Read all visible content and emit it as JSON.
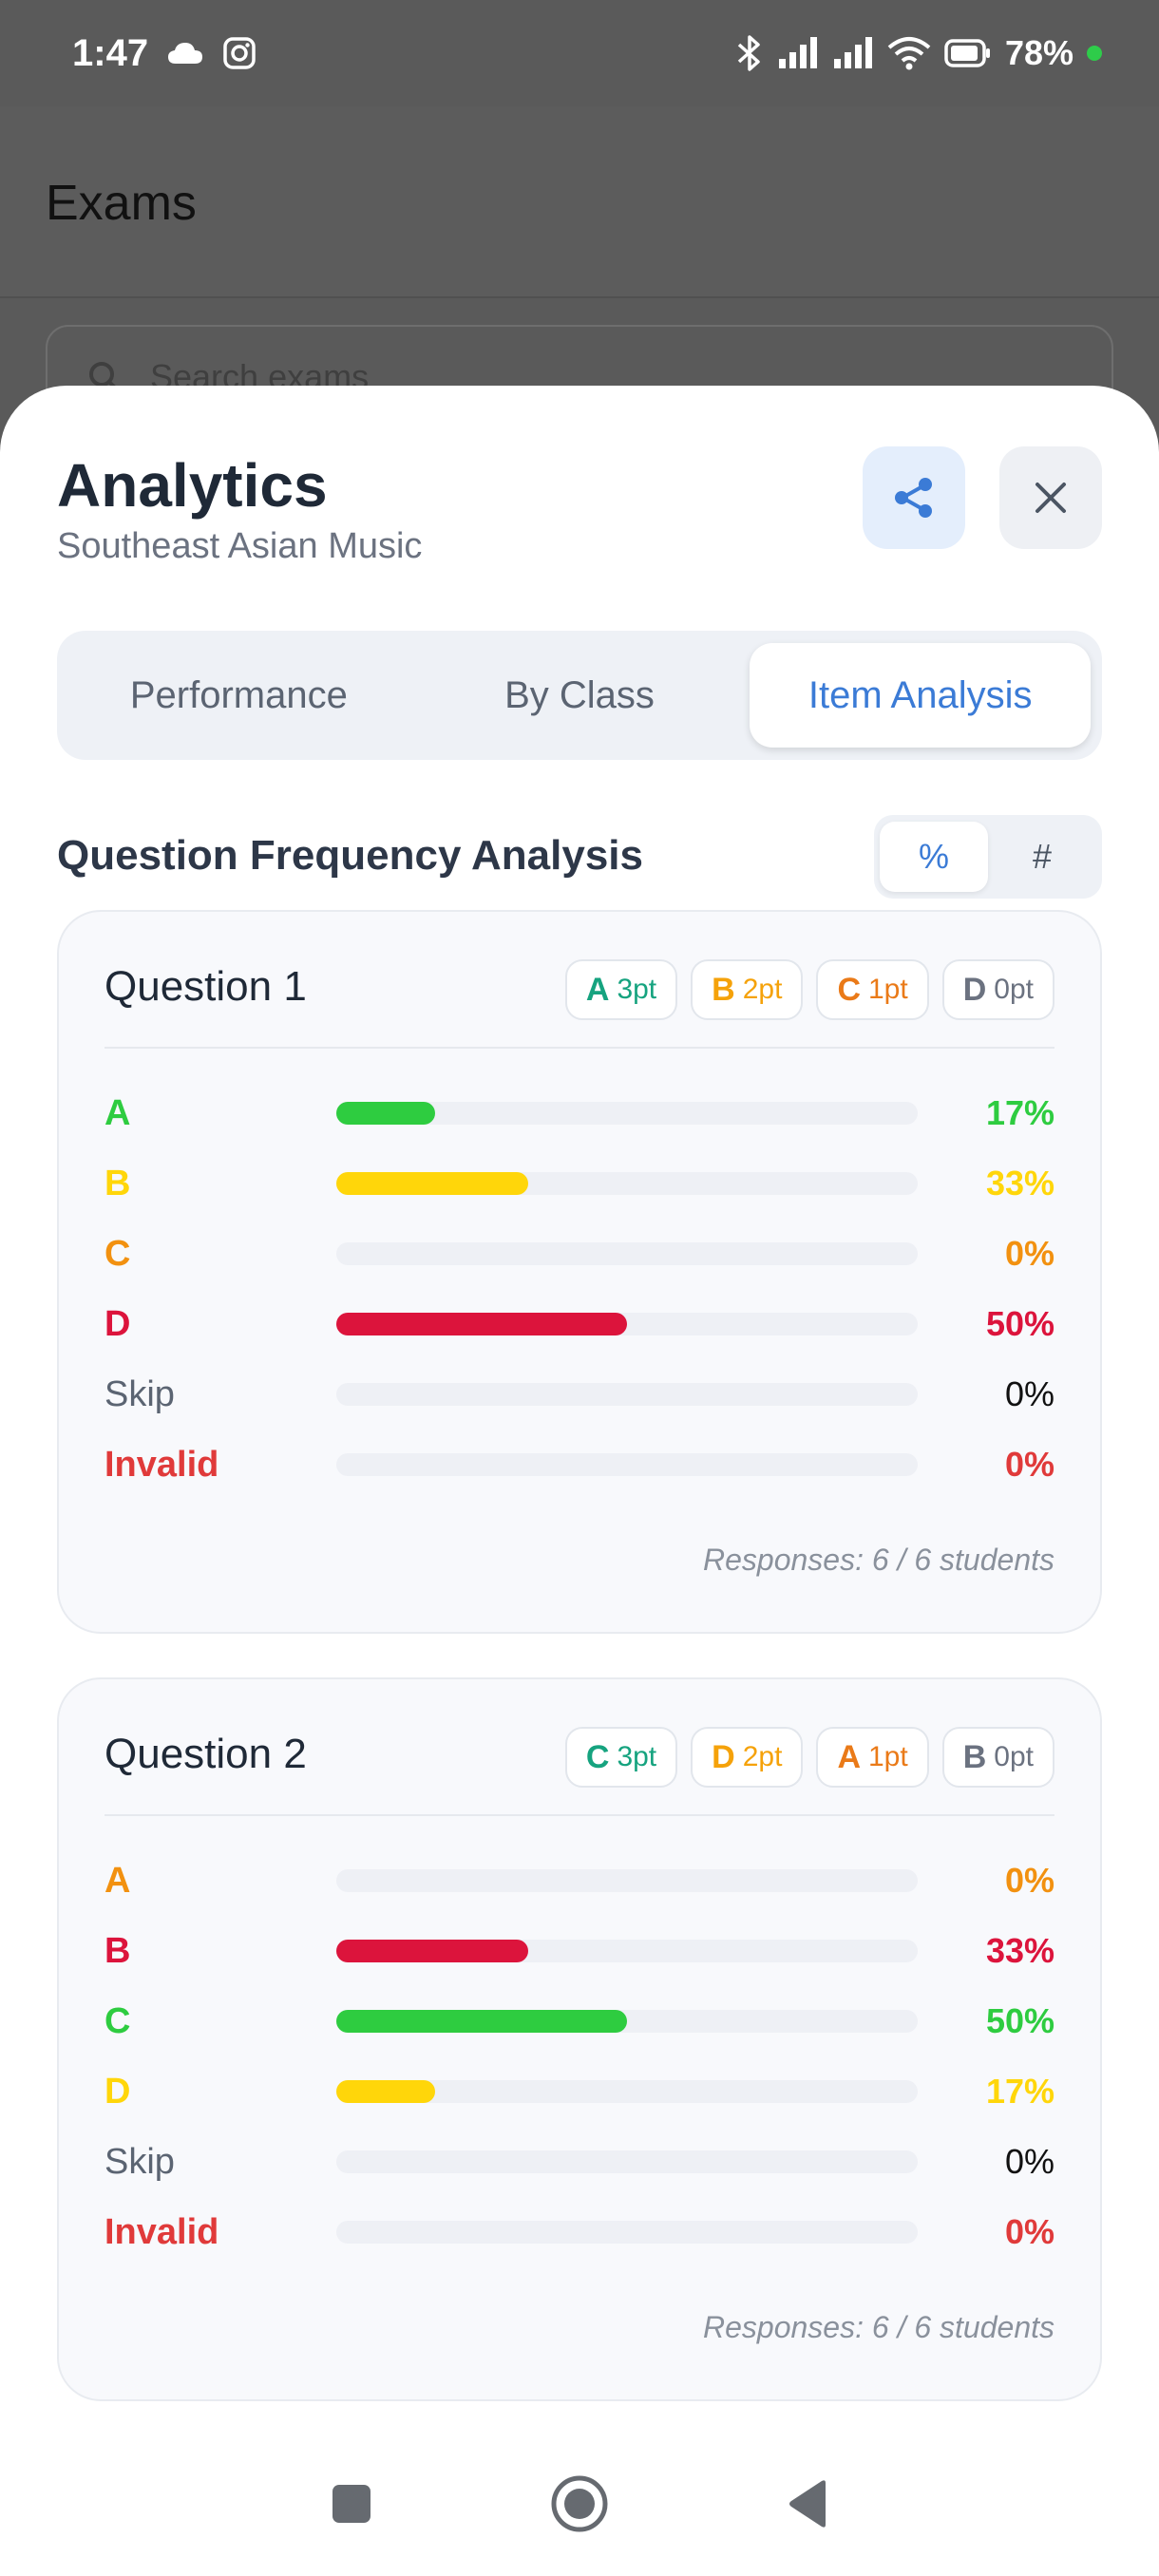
{
  "status_bar": {
    "time": "1:47",
    "left_icons": [
      "cloud-icon",
      "instagram-icon"
    ],
    "right_icons": [
      "bluetooth-icon",
      "signal-icon",
      "signal-icon",
      "wifi-icon",
      "battery-icon"
    ],
    "battery": "78%",
    "dot_color": "#2ecc4a"
  },
  "app": {
    "title": "Exams",
    "search_placeholder": "Search exams"
  },
  "sheet": {
    "title": "Analytics",
    "subtitle": "Southeast Asian Music",
    "tabs": [
      {
        "label": "Performance",
        "active": false
      },
      {
        "label": "By Class",
        "active": false
      },
      {
        "label": "Item Analysis",
        "active": true
      }
    ],
    "section_title": "Question Frequency Analysis",
    "mode_toggle": {
      "percent": "%",
      "count": "#",
      "selected": "percent"
    },
    "questions": [
      {
        "title": "Question 1",
        "badges": [
          {
            "letter": "A",
            "points": "3pt",
            "color": "#16a37f"
          },
          {
            "letter": "B",
            "points": "2pt",
            "color": "#f5a20a"
          },
          {
            "letter": "C",
            "points": "1pt",
            "color": "#ea7a18"
          },
          {
            "letter": "D",
            "points": "0pt",
            "color": "#6b7280"
          }
        ],
        "options": [
          {
            "label": "A",
            "percent": "17%",
            "value": 17,
            "color": "#2ecc40"
          },
          {
            "label": "B",
            "percent": "33%",
            "value": 33,
            "color": "#ffd60a"
          },
          {
            "label": "C",
            "percent": "0%",
            "value": 0,
            "color": "#f29110"
          },
          {
            "label": "D",
            "percent": "50%",
            "value": 50,
            "color": "#dc143c"
          },
          {
            "label": "Skip",
            "percent": "0%",
            "value": 0,
            "color": "#5b6472"
          },
          {
            "label": "Invalid",
            "percent": "0%",
            "value": 0,
            "color": "#e03a3a"
          }
        ],
        "responses": "Responses: 6 / 6 students"
      },
      {
        "title": "Question 2",
        "badges": [
          {
            "letter": "C",
            "points": "3pt",
            "color": "#16a37f"
          },
          {
            "letter": "D",
            "points": "2pt",
            "color": "#f5a20a"
          },
          {
            "letter": "A",
            "points": "1pt",
            "color": "#ea7a18"
          },
          {
            "letter": "B",
            "points": "0pt",
            "color": "#6b7280"
          }
        ],
        "options": [
          {
            "label": "A",
            "percent": "0%",
            "value": 0,
            "color": "#f29110"
          },
          {
            "label": "B",
            "percent": "33%",
            "value": 33,
            "color": "#dc143c"
          },
          {
            "label": "C",
            "percent": "50%",
            "value": 50,
            "color": "#2ecc40"
          },
          {
            "label": "D",
            "percent": "17%",
            "value": 17,
            "color": "#ffd60a"
          },
          {
            "label": "Skip",
            "percent": "0%",
            "value": 0,
            "color": "#5b6472"
          },
          {
            "label": "Invalid",
            "percent": "0%",
            "value": 0,
            "color": "#e03a3a"
          }
        ],
        "responses": "Responses: 6 / 6 students"
      }
    ]
  },
  "nav_bar": {
    "buttons": [
      "recents-square-icon",
      "home-circle-icon",
      "back-triangle-icon"
    ]
  }
}
